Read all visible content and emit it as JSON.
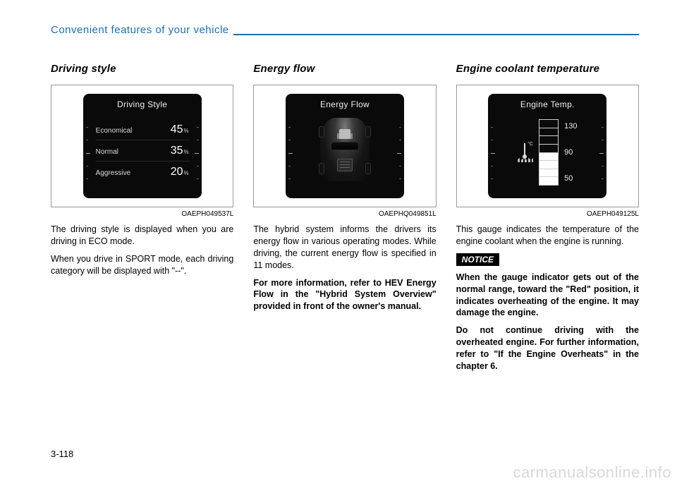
{
  "header": {
    "title": "Convenient features of your vehicle"
  },
  "col1": {
    "heading": "Driving style",
    "fig_label": "OAEPH049537L",
    "screen_title": "Driving Style",
    "rows": [
      {
        "label": "Economical",
        "value": "45",
        "unit": "%"
      },
      {
        "label": "Normal",
        "value": "35",
        "unit": "%"
      },
      {
        "label": "Aggressive",
        "value": "20",
        "unit": "%"
      }
    ],
    "para1": "The driving style is displayed when you are driving in ECO mode.",
    "para2": "When you drive in SPORT mode, each driving category will be dis­played with \"--\"."
  },
  "col2": {
    "heading": "Energy flow",
    "fig_label": "OAEPHQ049851L",
    "screen_title": "Energy Flow",
    "para1": "The hybrid system informs the driv­ers its energy flow in various operat­ing modes. While driving, the current energy flow is specified in 11 modes.",
    "para2": "For more information, refer to HEV Energy Flow in the \"Hybrid System Overview\" provided in front of the owner's manual."
  },
  "col3": {
    "heading": "Engine coolant temperature",
    "fig_label": "OAEPH049125L",
    "screen_title": "Engine Temp.",
    "temp_labels": [
      "130",
      "90",
      "50"
    ],
    "temp_unit": "°C",
    "para1": "This gauge indicates the tempera­ture of the engine coolant when the engine is running.",
    "notice": "NOTICE",
    "para2": "When the gauge indicator gets out of the normal range, toward the \"Red\" position, it indicates over­heating of the engine. It may dam­age the engine.",
    "para3": "Do not continue driving with the overheated engine. For further information, refer to \"If the Engine Overheats\" in the chapter 6."
  },
  "page_number": "3-118",
  "watermark": "carmanualsonline.info"
}
